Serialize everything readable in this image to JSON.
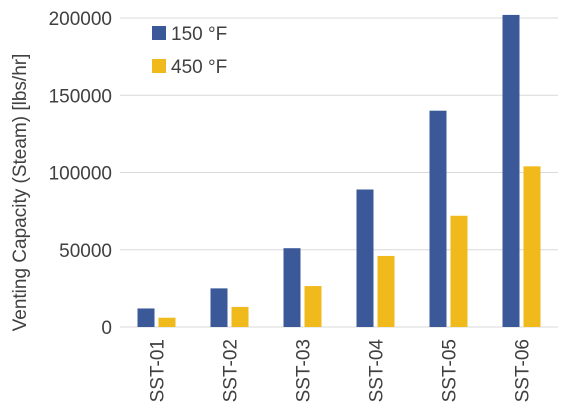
{
  "chart_data": {
    "type": "bar",
    "categories": [
      "SST-01",
      "SST-02",
      "SST-03",
      "SST-04",
      "SST-05",
      "SST-06"
    ],
    "series": [
      {
        "name": "150 °F",
        "color": "#3b5998",
        "values": [
          12000,
          25000,
          51000,
          89000,
          140000,
          202000
        ]
      },
      {
        "name": "450 °F",
        "color": "#f0b91c",
        "values": [
          6000,
          13000,
          26500,
          46000,
          72000,
          104000
        ]
      }
    ],
    "ylabel": "Venting Capacity (Steam) [lbs/hr]",
    "ylim": [
      0,
      200000
    ],
    "yticks": [
      0,
      50000,
      100000,
      150000,
      200000
    ],
    "ytick_labels": [
      "0",
      "50000",
      "100000",
      "150000",
      "200000"
    ],
    "grid": true,
    "legend_position": "top-left"
  }
}
